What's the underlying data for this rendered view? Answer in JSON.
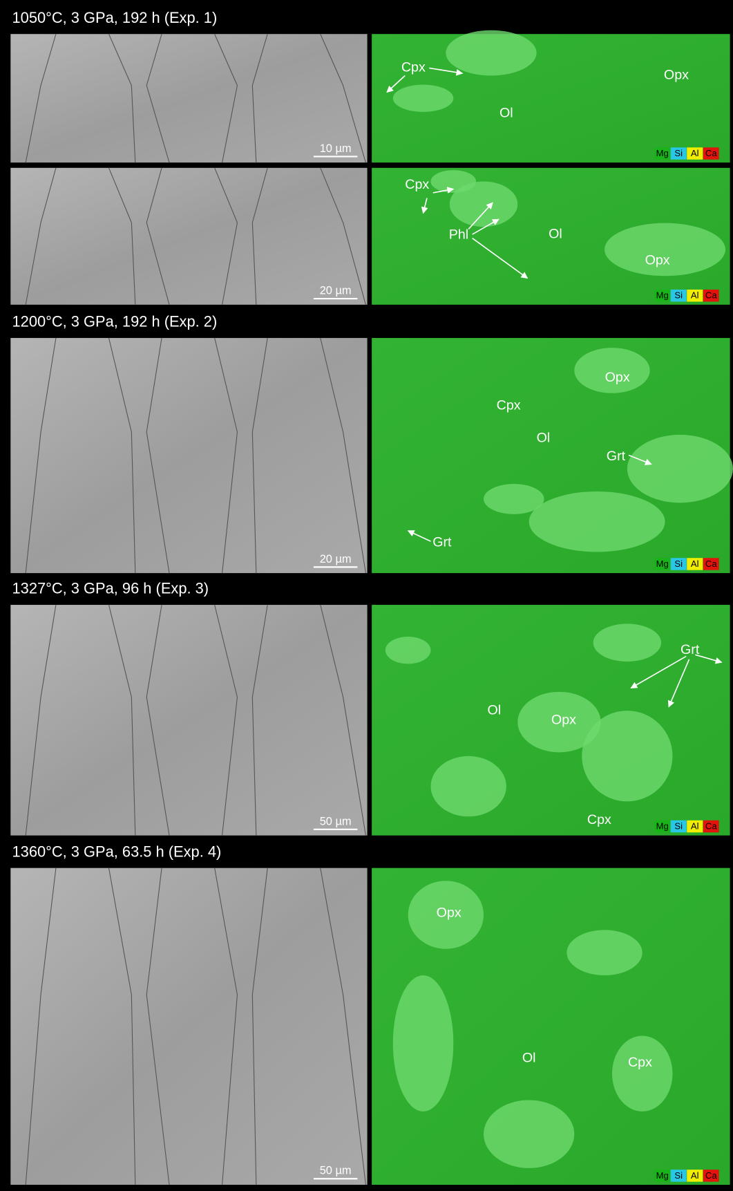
{
  "sections": [
    {
      "title": "1050°C, 3 GPa, 192 h (Exp. 1)",
      "rows": [
        {
          "scale_bar": "10 µm",
          "labels": [
            "Cpx",
            "Opx",
            "Ol"
          ],
          "legend": [
            "Mg",
            "Si",
            "Al",
            "Ca"
          ]
        },
        {
          "scale_bar": "20 µm",
          "labels": [
            "Cpx",
            "Phl",
            "Ol",
            "Opx"
          ],
          "legend": [
            "Mg",
            "Si",
            "Al",
            "Ca"
          ]
        }
      ]
    },
    {
      "title": "1200°C, 3 GPa, 192 h (Exp. 2)",
      "rows": [
        {
          "scale_bar": "20 µm",
          "labels": [
            "Opx",
            "Cpx",
            "Ol",
            "Grt",
            "Grt"
          ],
          "legend": [
            "Mg",
            "Si",
            "Al",
            "Ca"
          ]
        }
      ]
    },
    {
      "title": "1327°C, 3 GPa, 96 h (Exp. 3)",
      "rows": [
        {
          "scale_bar": "50 µm",
          "labels": [
            "Grt",
            "Ol",
            "Opx",
            "Cpx"
          ],
          "legend": [
            "Mg",
            "Si",
            "Al",
            "Ca"
          ]
        }
      ]
    },
    {
      "title": "1360°C, 3 GPa, 63.5 h (Exp. 4)",
      "rows": [
        {
          "scale_bar": "50 µm",
          "labels": [
            "Opx",
            "Ol",
            "Cpx"
          ],
          "legend": [
            "Mg",
            "Si",
            "Al",
            "Ca"
          ]
        }
      ]
    }
  ]
}
